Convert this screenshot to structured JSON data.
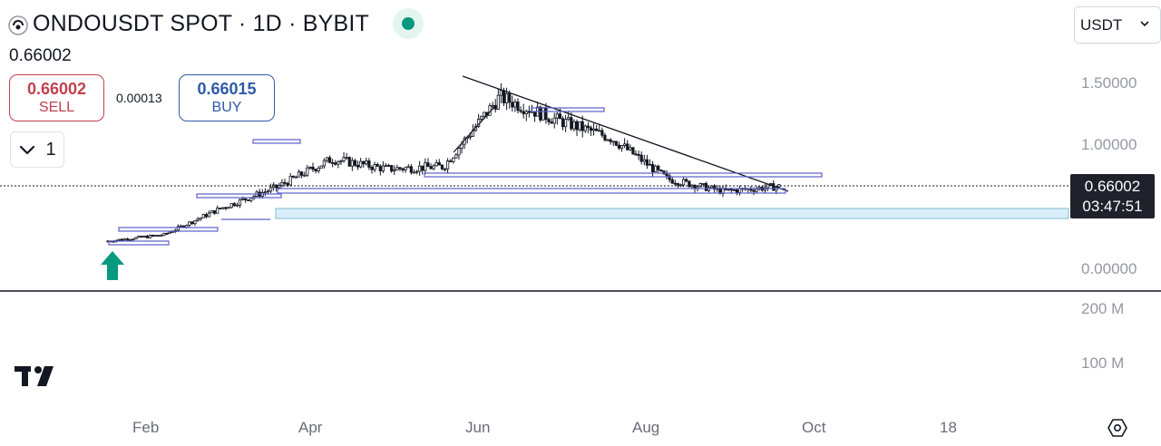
{
  "header": {
    "title": "ONDOUSDT SPOT · 1D · BYBIT",
    "logo_icon": "ondo-logo-icon",
    "live_status_color": "#089981"
  },
  "last_price": "0.66002",
  "trade": {
    "sell_price": "0.66002",
    "sell_label": "SELL",
    "spread": "0.00013",
    "buy_price": "0.66015",
    "buy_label": "BUY"
  },
  "indicators_toggle": {
    "count": "1",
    "icon": "chevron-down-icon"
  },
  "currency": {
    "selected": "USDT"
  },
  "price_axis": {
    "labels": [
      "1.50000",
      "1.00000",
      "0.00000"
    ],
    "current_price": "0.66002",
    "countdown": "03:47:51"
  },
  "volume_axis": {
    "labels": [
      "200 M",
      "100 M"
    ]
  },
  "time_axis": {
    "labels": [
      "Feb",
      "Apr",
      "Jun",
      "Aug",
      "Oct",
      "18"
    ]
  },
  "colors": {
    "candle": "#131722",
    "drawing": "#5b5fc7",
    "zone_fill": "#d9eef8",
    "arrow": "#089981",
    "sell": "#c0424e",
    "buy": "#2e5aa8"
  },
  "chart_data": {
    "type": "candlestick",
    "symbol": "ONDOUSDT",
    "interval": "1D",
    "exchange": "BYBIT",
    "x_labels": [
      "Feb",
      "Apr",
      "Jun",
      "Aug",
      "Oct",
      "18"
    ],
    "y_ticks": [
      1.5,
      1.0,
      0.0
    ],
    "current_price": 0.66002,
    "approx_closes": [
      {
        "period": "late Jan",
        "close": 0.22
      },
      {
        "period": "Feb",
        "close": 0.27
      },
      {
        "period": "early Mar",
        "close": 0.48
      },
      {
        "period": "mid Mar",
        "close": 0.65
      },
      {
        "period": "late Mar",
        "close": 0.88
      },
      {
        "period": "Apr",
        "close": 0.8
      },
      {
        "period": "May",
        "close": 0.82
      },
      {
        "period": "early Jun",
        "close": 1.38
      },
      {
        "period": "mid Jun",
        "close": 1.2
      },
      {
        "period": "Jul",
        "close": 1.05
      },
      {
        "period": "early Aug",
        "close": 0.72
      },
      {
        "period": "late Aug",
        "close": 0.62
      },
      {
        "period": "Sep",
        "close": 0.66
      }
    ]
  }
}
